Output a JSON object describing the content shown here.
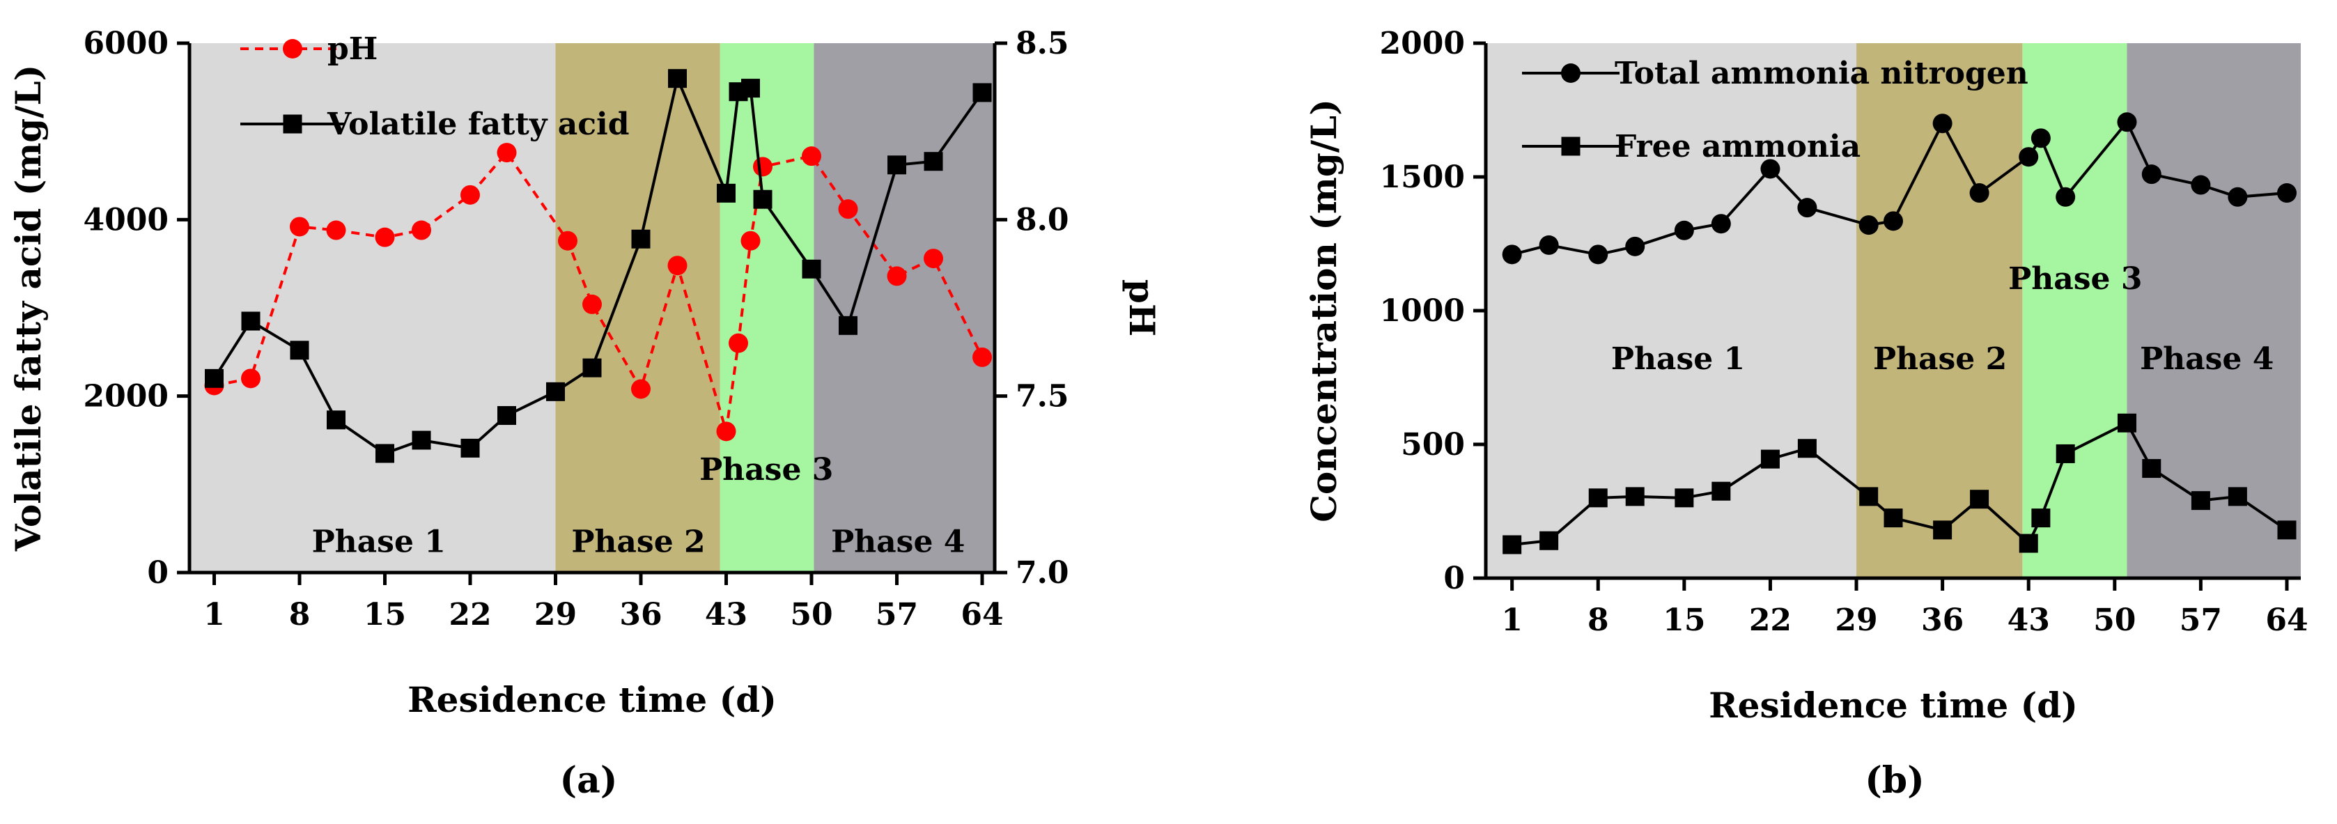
{
  "chart_data": [
    {
      "panel_label": "(a)",
      "type": "line",
      "xlabel": "Residence time (d)",
      "ylabel": "Volatile fatty acid (mg/L)",
      "y2label": "pH",
      "xlim": [
        0,
        64
      ],
      "x_ticks": [
        1,
        8,
        15,
        22,
        29,
        36,
        43,
        50,
        57,
        64
      ],
      "ylim": [
        0,
        6000
      ],
      "y_ticks": [
        0,
        2000,
        4000,
        6000
      ],
      "y2lim": [
        7.0,
        8.5
      ],
      "y2_ticks": [
        "7.0",
        "7.5",
        "8.0",
        "8.5"
      ],
      "phases": [
        {
          "name": "Phase 1",
          "start": 0,
          "end": 29,
          "color": "#d9d9d9",
          "label_x": 14.5,
          "label_y": 350
        },
        {
          "name": "Phase 2",
          "start": 29,
          "end": 42.5,
          "color": "#c2b57a",
          "label_x": 35.8,
          "label_y": 350
        },
        {
          "name": "Phase 3",
          "start": 42.5,
          "end": 50.2,
          "color": "#a6f5a0",
          "label_x": 46.3,
          "label_y": 1170
        },
        {
          "name": "Phase 4",
          "start": 50.2,
          "end": 64,
          "color": "#a09fa6",
          "label_x": 57.1,
          "label_y": 350
        }
      ],
      "series": [
        {
          "name": "pH",
          "axis": "y2",
          "color": "#ff0000",
          "marker": "circle",
          "dashed": true,
          "x": [
            1,
            4,
            8,
            11,
            15,
            18,
            22,
            25,
            30,
            32,
            36,
            39,
            43,
            44,
            45,
            46,
            50,
            53,
            57,
            60,
            64
          ],
          "y": [
            7.53,
            7.55,
            7.98,
            7.97,
            7.95,
            7.97,
            8.07,
            8.19,
            7.94,
            7.76,
            7.52,
            7.87,
            7.4,
            7.65,
            7.94,
            8.15,
            8.18,
            8.03,
            7.84,
            7.89,
            7.61
          ]
        },
        {
          "name": "Volatile fatty acid",
          "axis": "y",
          "color": "#000000",
          "marker": "square",
          "dashed": false,
          "x": [
            1,
            4,
            8,
            11,
            15,
            18,
            22,
            25,
            29,
            32,
            36,
            39,
            43,
            44,
            45,
            46,
            50,
            53,
            57,
            60,
            64
          ],
          "y": [
            2200,
            2850,
            2520,
            1730,
            1350,
            1500,
            1410,
            1780,
            2050,
            2320,
            3780,
            5600,
            4300,
            5450,
            5490,
            4230,
            3440,
            2800,
            4620,
            4660,
            5440
          ]
        }
      ]
    },
    {
      "panel_label": "(b)",
      "type": "line",
      "xlabel": "Residence time (d)",
      "ylabel": "Concentration (mg/L)",
      "xlim": [
        0,
        64
      ],
      "x_ticks": [
        1,
        8,
        15,
        22,
        29,
        36,
        43,
        50,
        57,
        64
      ],
      "ylim": [
        0,
        2000
      ],
      "y_ticks": [
        0,
        500,
        1000,
        1500,
        2000
      ],
      "phases": [
        {
          "name": "Phase 1",
          "start": 0,
          "end": 29,
          "color": "#d9d9d9",
          "label_x": 14.5,
          "label_y": 820
        },
        {
          "name": "Phase 2",
          "start": 29,
          "end": 42.5,
          "color": "#c2b57a",
          "label_x": 35.8,
          "label_y": 820
        },
        {
          "name": "Phase 3",
          "start": 42.5,
          "end": 51,
          "color": "#a6f5a0",
          "label_x": 46.8,
          "label_y": 1120
        },
        {
          "name": "Phase 4",
          "start": 51,
          "end": 64,
          "color": "#a09fa6",
          "label_x": 57.5,
          "label_y": 820
        }
      ],
      "series": [
        {
          "name": "Total ammonia nitrogen",
          "color": "#000000",
          "marker": "circle",
          "x": [
            1,
            4,
            8,
            11,
            15,
            18,
            22,
            25,
            30,
            32,
            36,
            39,
            43,
            44,
            46,
            51,
            53,
            57,
            60,
            64
          ],
          "y": [
            1210,
            1245,
            1210,
            1240,
            1300,
            1325,
            1530,
            1385,
            1320,
            1335,
            1700,
            1440,
            1575,
            1645,
            1425,
            1705,
            1510,
            1470,
            1425,
            1440
          ]
        },
        {
          "name": "Free ammonia",
          "color": "#000000",
          "marker": "square",
          "x": [
            1,
            4,
            8,
            11,
            15,
            18,
            22,
            25,
            30,
            32,
            36,
            39,
            43,
            44,
            46,
            51,
            53,
            57,
            60,
            64
          ],
          "y": [
            125,
            140,
            300,
            305,
            300,
            325,
            445,
            485,
            305,
            225,
            180,
            295,
            130,
            225,
            465,
            580,
            410,
            290,
            305,
            180
          ]
        }
      ]
    }
  ]
}
